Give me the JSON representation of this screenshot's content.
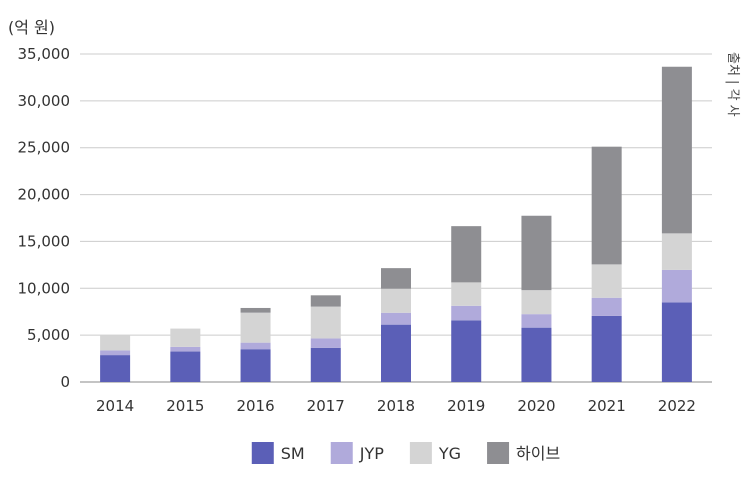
{
  "chart_data": {
    "type": "bar",
    "stacked": true,
    "unit_label": "(억 원)",
    "source_label": "출처 | 각 사",
    "categories": [
      "2014",
      "2015",
      "2016",
      "2017",
      "2018",
      "2019",
      "2020",
      "2021",
      "2022"
    ],
    "series": [
      {
        "name": "SM",
        "color": "#5b5fb7",
        "values": [
          2870,
          3250,
          3500,
          3650,
          6120,
          6580,
          5800,
          7050,
          8500
        ]
      },
      {
        "name": "JYP",
        "color": "#b0aadb",
        "values": [
          500,
          500,
          700,
          1000,
          1270,
          1550,
          1440,
          1940,
          3460
        ]
      },
      {
        "name": "YG",
        "color": "#d4d4d4",
        "values": [
          1580,
          1950,
          3200,
          3400,
          2560,
          2500,
          2560,
          3560,
          3900
        ]
      },
      {
        "name": "하이브",
        "color": "#8e8e92",
        "values": [
          0,
          0,
          500,
          1200,
          2200,
          6000,
          7940,
          12560,
          17780
        ]
      }
    ],
    "yticks": [
      "0",
      "5,000",
      "10,000",
      "15,000",
      "20,000",
      "25,000",
      "30,000",
      "35,000"
    ],
    "ylim": [
      0,
      35000
    ],
    "ystep": 5000,
    "grid": true,
    "legend": "bottom-center"
  }
}
